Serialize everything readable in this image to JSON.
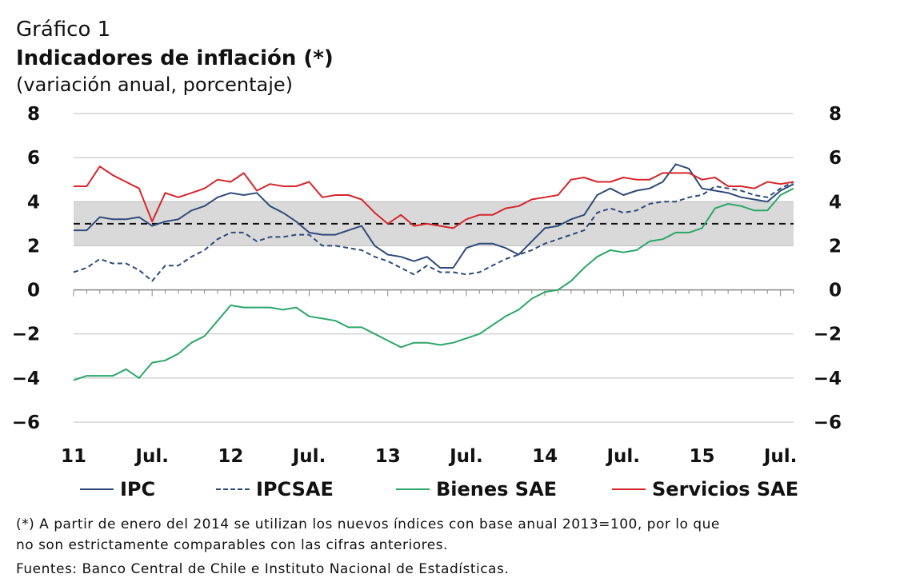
{
  "header": {
    "label": "Gráfico 1",
    "title": "Indicadores de inflación (*)",
    "subtitle": "(variación anual, porcentaje)"
  },
  "chart_data": {
    "type": "line",
    "ylim": [
      -6,
      8
    ],
    "yticks": [
      8,
      6,
      4,
      2,
      0,
      -2,
      -4,
      -6
    ],
    "xticks": [
      {
        "label": "11",
        "x": 0
      },
      {
        "label": "Jul.",
        "x": 6
      },
      {
        "label": "12",
        "x": 12
      },
      {
        "label": "Jul.",
        "x": 18
      },
      {
        "label": "13",
        "x": 24
      },
      {
        "label": "Jul.",
        "x": 30
      },
      {
        "label": "14",
        "x": 36
      },
      {
        "label": "Jul.",
        "x": 42
      },
      {
        "label": "15",
        "x": 48
      },
      {
        "label": "Jul.",
        "x": 54
      }
    ],
    "xlim": [
      0,
      55
    ],
    "target_band": [
      2,
      4
    ],
    "target_line": 3,
    "grid": true,
    "legend_position": "bottom",
    "series": [
      {
        "name": "IPC",
        "color": "#2e4a7a",
        "dash": false,
        "values": [
          2.7,
          2.7,
          3.3,
          3.2,
          3.2,
          3.3,
          2.9,
          3.1,
          3.2,
          3.6,
          3.8,
          4.2,
          4.4,
          4.3,
          4.4,
          3.8,
          3.5,
          3.1,
          2.6,
          2.5,
          2.5,
          2.7,
          2.9,
          2.0,
          1.6,
          1.5,
          1.3,
          1.5,
          1.0,
          1.0,
          1.9,
          2.1,
          2.1,
          1.9,
          1.6,
          2.2,
          2.8,
          2.9,
          3.2,
          3.4,
          4.3,
          4.6,
          4.3,
          4.5,
          4.6,
          4.9,
          5.7,
          5.5,
          4.6,
          4.5,
          4.4,
          4.2,
          4.1,
          4.0,
          4.5,
          4.8
        ]
      },
      {
        "name": "IPCSAE",
        "color": "#2e4a7a",
        "dash": true,
        "values": [
          0.8,
          1.0,
          1.4,
          1.2,
          1.2,
          0.9,
          0.4,
          1.1,
          1.1,
          1.5,
          1.8,
          2.3,
          2.6,
          2.6,
          2.2,
          2.4,
          2.4,
          2.5,
          2.5,
          2.0,
          2.0,
          1.9,
          1.8,
          1.5,
          1.3,
          1.0,
          0.7,
          1.1,
          0.8,
          0.8,
          0.7,
          0.8,
          1.1,
          1.4,
          1.6,
          1.8,
          2.1,
          2.3,
          2.5,
          2.7,
          3.5,
          3.7,
          3.5,
          3.6,
          3.9,
          4.0,
          4.0,
          4.2,
          4.3,
          4.7,
          4.6,
          4.5,
          4.3,
          4.2,
          4.6,
          4.9
        ]
      },
      {
        "name": "Bienes SAE",
        "color": "#2ca66a",
        "dash": false,
        "values": [
          -4.1,
          -3.9,
          -3.9,
          -3.9,
          -3.6,
          -4.0,
          -3.3,
          -3.2,
          -2.9,
          -2.4,
          -2.1,
          -1.4,
          -0.7,
          -0.8,
          -0.8,
          -0.8,
          -0.9,
          -0.8,
          -1.2,
          -1.3,
          -1.4,
          -1.7,
          -1.7,
          -2.0,
          -2.3,
          -2.6,
          -2.4,
          -2.4,
          -2.5,
          -2.4,
          -2.2,
          -2.0,
          -1.6,
          -1.2,
          -0.9,
          -0.4,
          -0.1,
          0.0,
          0.4,
          1.0,
          1.5,
          1.8,
          1.7,
          1.8,
          2.2,
          2.3,
          2.6,
          2.6,
          2.8,
          3.7,
          3.9,
          3.8,
          3.6,
          3.6,
          4.3,
          4.6
        ]
      },
      {
        "name": "Servicios SAE",
        "color": "#d7262b",
        "dash": false,
        "values": [
          4.7,
          4.7,
          5.6,
          5.2,
          4.9,
          4.6,
          3.1,
          4.4,
          4.2,
          4.4,
          4.6,
          5.0,
          4.9,
          5.3,
          4.5,
          4.8,
          4.7,
          4.7,
          4.9,
          4.2,
          4.3,
          4.3,
          4.1,
          3.5,
          3.0,
          3.4,
          2.9,
          3.0,
          2.9,
          2.8,
          3.2,
          3.4,
          3.4,
          3.7,
          3.8,
          4.1,
          4.2,
          4.3,
          5.0,
          5.1,
          4.9,
          4.9,
          5.1,
          5.0,
          5.0,
          5.3,
          5.3,
          5.3,
          5.0,
          5.1,
          4.7,
          4.7,
          4.6,
          4.9,
          4.8,
          4.9
        ]
      }
    ]
  },
  "legend": [
    {
      "label": "IPC"
    },
    {
      "label": "IPCSAE"
    },
    {
      "label": "Bienes SAE"
    },
    {
      "label": "Servicios SAE"
    }
  ],
  "footnotes": {
    "note_line1": "(*) A partir de enero del 2014 se utilizan los nuevos índices con base anual 2013=100, por lo que",
    "note_line2": "no son estrictamente comparables con las cifras anteriores.",
    "sources": "Fuentes: Banco Central de Chile e Instituto Nacional de Estadísticas."
  }
}
